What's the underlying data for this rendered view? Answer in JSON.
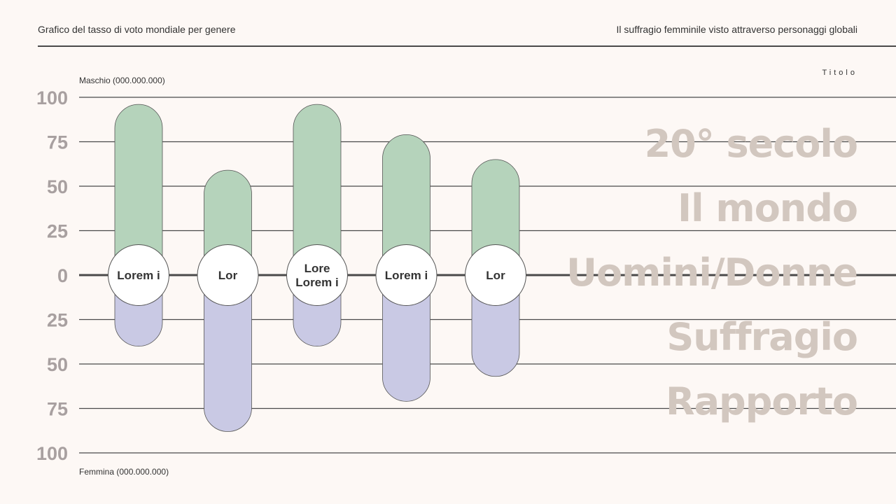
{
  "header": {
    "left_title": "Grafico del tasso di voto mondiale per genere",
    "right_title": "Il suffragio femminile visto attraverso personaggi globali"
  },
  "small_title": "Titolo",
  "big_titles": [
    "20° secolo",
    "Il mondo",
    "Uomini/Donne",
    "Suffragio",
    "Rapporto"
  ],
  "colors": {
    "male": "#b5d3bb",
    "female": "#c9c9e4",
    "grid": "#4a4a4a",
    "tick_text": "#a8a0a0",
    "title_text": "#d2c7bf",
    "background": "#fdf8f5"
  },
  "chart_data": {
    "type": "bar",
    "top_label": "Maschio (000.000.000)",
    "bottom_label": "Femmina (000.000.000)",
    "y_ticks_top": [
      "100",
      "75",
      "50",
      "25"
    ],
    "zero_tick": "0",
    "y_ticks_bottom": [
      "25",
      "50",
      "75",
      "100"
    ],
    "ylim": [
      -100,
      100
    ],
    "categories": [
      [
        "Lorem i"
      ],
      [
        "Lor"
      ],
      [
        "Lore",
        "Lorem i"
      ],
      [
        "Lorem i"
      ],
      [
        "Lor"
      ]
    ],
    "series": [
      {
        "name": "Maschio",
        "values": [
          96,
          59,
          96,
          79,
          65
        ]
      },
      {
        "name": "Femmina",
        "values": [
          40,
          88,
          40,
          71,
          57
        ]
      }
    ]
  }
}
